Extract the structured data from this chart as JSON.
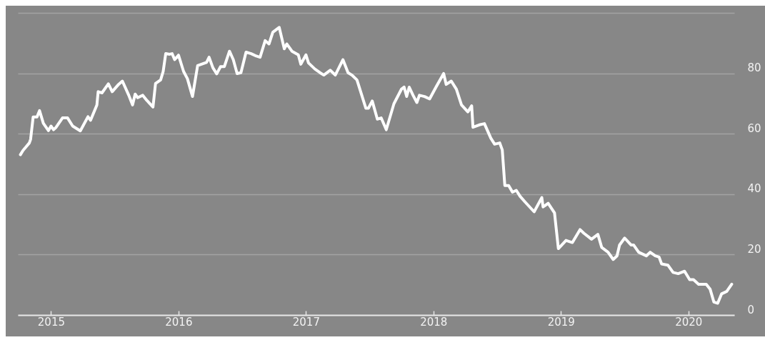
{
  "chart_data": {
    "type": "line",
    "x": [
      2014.76,
      2014.78,
      2014.83,
      2014.84,
      2014.86,
      2014.89,
      2014.91,
      2014.94,
      2014.98,
      2015.0,
      2015.02,
      2015.04,
      2015.09,
      2015.13,
      2015.17,
      2015.23,
      2015.29,
      2015.31,
      2015.36,
      2015.37,
      2015.4,
      2015.45,
      2015.48,
      2015.53,
      2015.56,
      2015.61,
      2015.64,
      2015.66,
      2015.68,
      2015.72,
      2015.75,
      2015.8,
      2015.82,
      2015.86,
      2015.88,
      2015.9,
      2015.93,
      2015.95,
      2015.97,
      2016.0,
      2016.04,
      2016.07,
      2016.11,
      2016.15,
      2016.2,
      2016.22,
      2016.24,
      2016.27,
      2016.3,
      2016.33,
      2016.36,
      2016.4,
      2016.43,
      2016.46,
      2016.49,
      2016.53,
      2016.57,
      2016.61,
      2016.64,
      2016.68,
      2016.71,
      2016.74,
      2016.79,
      2016.83,
      2016.85,
      2016.89,
      2016.94,
      2016.96,
      2017.0,
      2017.02,
      2017.07,
      2017.11,
      2017.14,
      2017.19,
      2017.23,
      2017.29,
      2017.33,
      2017.36,
      2017.4,
      2017.47,
      2017.49,
      2017.52,
      2017.56,
      2017.59,
      2017.63,
      2017.69,
      2017.75,
      2017.77,
      2017.79,
      2017.81,
      2017.84,
      2017.87,
      2017.89,
      2017.93,
      2017.97,
      2018.02,
      2018.08,
      2018.1,
      2018.14,
      2018.18,
      2018.22,
      2018.27,
      2018.3,
      2018.31,
      2018.36,
      2018.4,
      2018.45,
      2018.48,
      2018.52,
      2018.54,
      2018.56,
      2018.59,
      2018.62,
      2018.65,
      2018.68,
      2018.72,
      2018.79,
      2018.85,
      2018.86,
      2018.9,
      2018.95,
      2018.98,
      2019.04,
      2019.09,
      2019.15,
      2019.18,
      2019.24,
      2019.29,
      2019.32,
      2019.37,
      2019.41,
      2019.44,
      2019.46,
      2019.5,
      2019.55,
      2019.57,
      2019.61,
      2019.67,
      2019.7,
      2019.74,
      2019.77,
      2019.79,
      2019.84,
      2019.88,
      2019.92,
      2019.97,
      2020.01,
      2020.04,
      2020.08,
      2020.14,
      2020.17,
      2020.2,
      2020.23,
      2020.26,
      2020.3,
      2020.34
    ],
    "series": [
      {
        "color": "#ffffff",
        "values": [
          53.1,
          54.5,
          57.0,
          58.2,
          65.6,
          65.6,
          67.7,
          63.5,
          61.1,
          62.6,
          61.4,
          62.2,
          65.3,
          65.3,
          62.6,
          61.0,
          65.7,
          64.5,
          69.6,
          74.0,
          73.6,
          76.6,
          74.0,
          76.4,
          77.5,
          72.8,
          69.6,
          73.2,
          72.0,
          72.8,
          71.2,
          68.9,
          76.7,
          77.9,
          80.7,
          86.6,
          86.4,
          86.6,
          84.6,
          86.1,
          80.7,
          78.3,
          72.4,
          82.6,
          83.4,
          83.7,
          85.4,
          81.9,
          79.9,
          82.3,
          82.3,
          87.4,
          84.6,
          80.0,
          80.3,
          87.1,
          86.6,
          85.8,
          85.4,
          90.9,
          89.8,
          93.7,
          95.3,
          88.2,
          89.8,
          87.4,
          86.2,
          83.1,
          86.2,
          83.5,
          81.5,
          80.3,
          79.5,
          81.1,
          79.5,
          84.6,
          80.3,
          79.5,
          77.9,
          68.5,
          68.5,
          70.9,
          64.9,
          65.3,
          61.4,
          70.0,
          74.9,
          75.5,
          72.4,
          75.5,
          72.8,
          70.4,
          72.8,
          72.4,
          71.6,
          75.5,
          80.0,
          76.4,
          77.5,
          74.8,
          69.6,
          67.3,
          69.3,
          62.2,
          63.0,
          63.4,
          58.6,
          56.6,
          57.0,
          54.7,
          42.9,
          42.9,
          40.7,
          41.3,
          39.3,
          37.4,
          34.2,
          38.9,
          35.8,
          37.0,
          33.8,
          22.0,
          24.7,
          24.0,
          28.3,
          27.1,
          25.1,
          26.7,
          22.4,
          20.8,
          18.4,
          19.6,
          23.2,
          25.5,
          23.2,
          23.2,
          20.8,
          19.6,
          20.8,
          19.6,
          19.2,
          16.9,
          16.5,
          14.1,
          13.7,
          14.5,
          11.7,
          11.7,
          10.2,
          10.2,
          8.6,
          4.3,
          3.9,
          7.0,
          7.8,
          10.2
        ]
      }
    ],
    "xlim": [
      2014.74,
      2020.36
    ],
    "xticks": [
      2015,
      2016,
      2017,
      2018,
      2019,
      2020
    ],
    "ylim": [
      0,
      102
    ],
    "yticks": [
      0,
      20,
      40,
      60,
      80,
      {
        "value": 100,
        "label": null
      }
    ],
    "grid": "y",
    "line_style": "solid",
    "marker": "none"
  }
}
